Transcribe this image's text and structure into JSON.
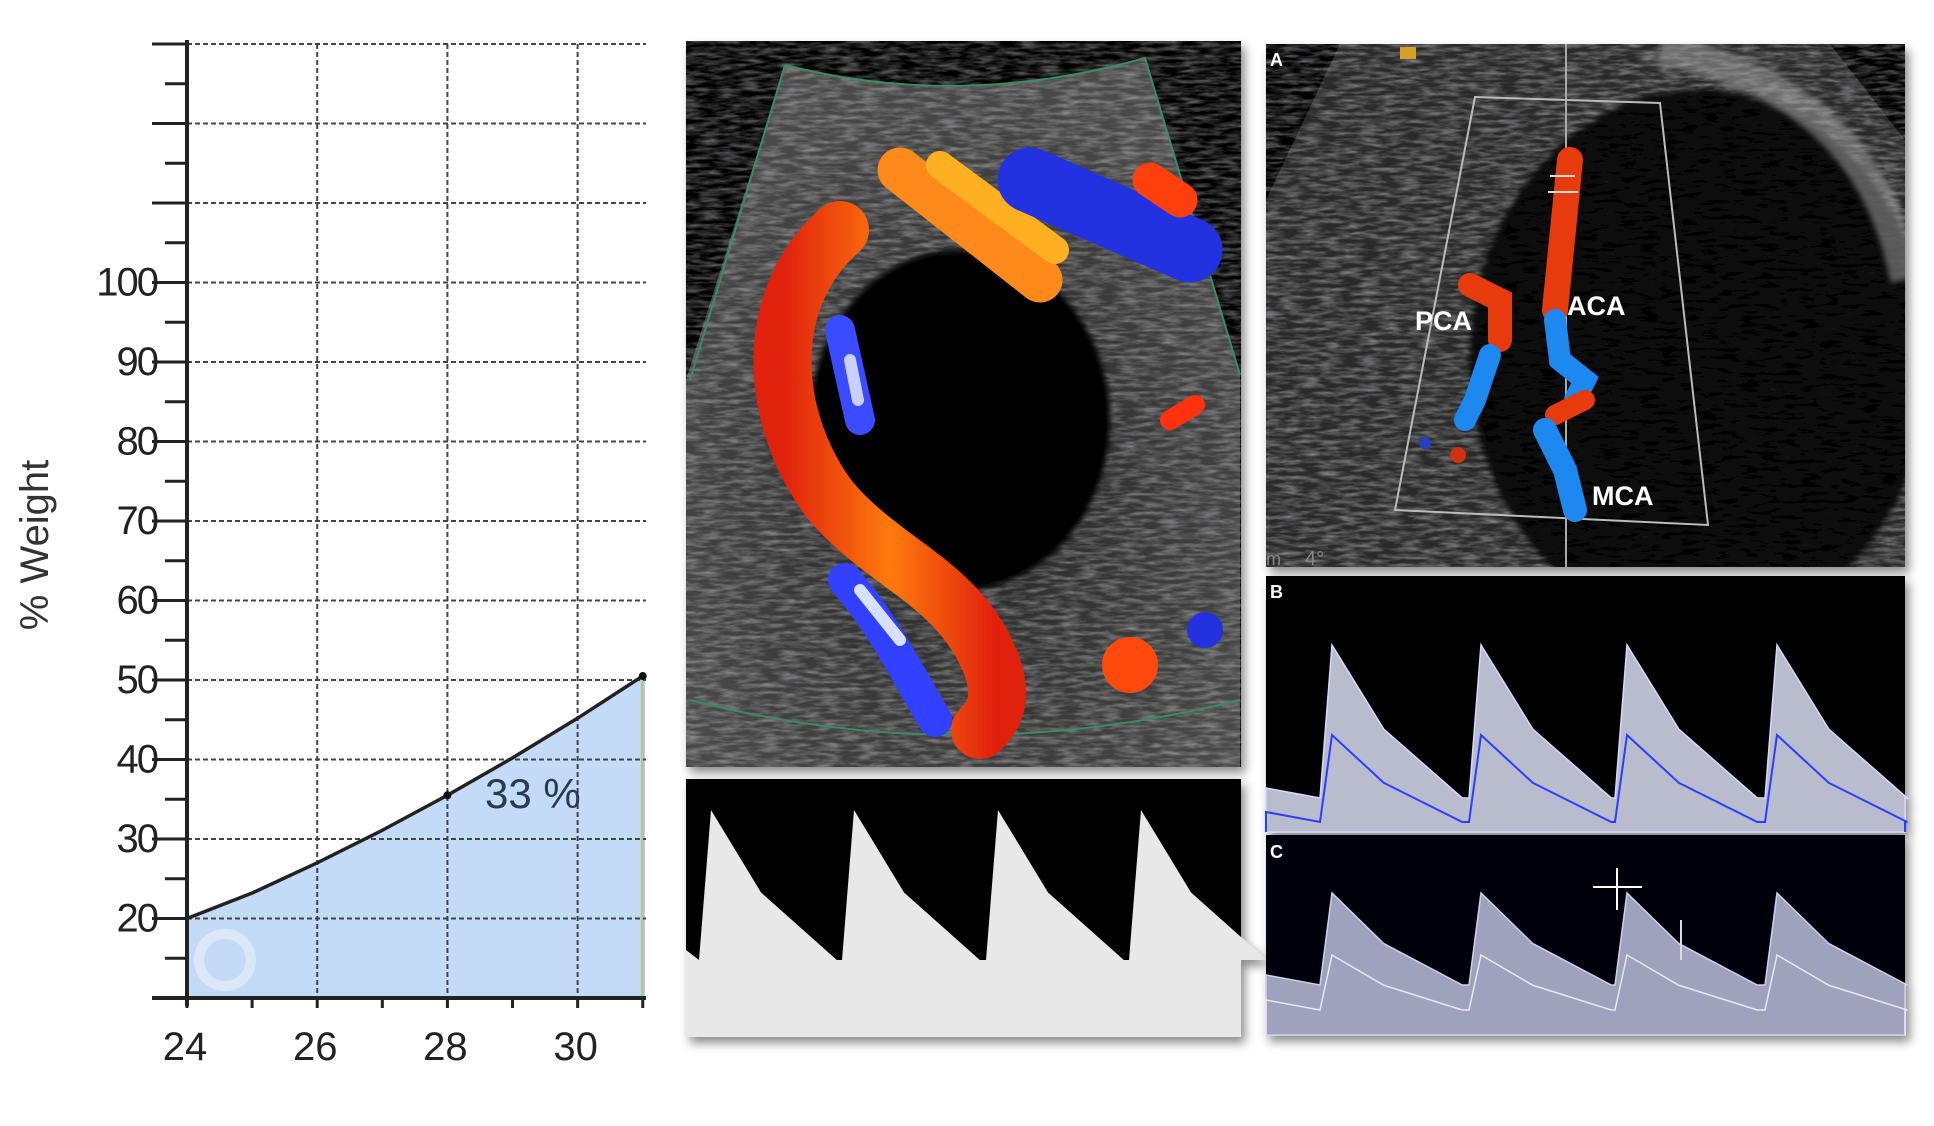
{
  "chart_data": {
    "type": "area",
    "title": "",
    "xlabel": "",
    "ylabel": "% Weight",
    "xlim": [
      24,
      31.05
    ],
    "ylim": [
      10,
      130
    ],
    "x_ticks": [
      "24",
      "26",
      "28",
      "30"
    ],
    "x_tick_values": [
      24,
      26,
      28,
      30
    ],
    "y_ticks": [
      "20",
      "30",
      "40",
      "50",
      "60",
      "70",
      "80",
      "90",
      "100"
    ],
    "y_tick_values": [
      20,
      30,
      40,
      50,
      60,
      70,
      80,
      90,
      100
    ],
    "y_grid_values": [
      20,
      30,
      40,
      50,
      60,
      70,
      80,
      90,
      100,
      110,
      120,
      130
    ],
    "grid": true,
    "grid_style": "dashed",
    "x": [
      24,
      25,
      26,
      27,
      28,
      29,
      30,
      31
    ],
    "y": [
      20,
      23.2,
      27,
      31.1,
      35.5,
      40.2,
      45.2,
      50.5
    ],
    "markers": [
      {
        "x": 28,
        "y": 35.5
      },
      {
        "x": 31,
        "y": 50.5
      }
    ],
    "annotation": "33 %",
    "colors": {
      "area": "#c4dbf7",
      "line": "#222222"
    }
  },
  "panels": {
    "middle": {
      "description_labels": []
    },
    "right": {
      "panel_a_label": "A",
      "panel_b_label": "B",
      "panel_c_label": "C",
      "vessel_labels": [
        "PCA",
        "ACA",
        "MCA"
      ],
      "angle_readout": "4°",
      "edge_text": "m"
    }
  }
}
